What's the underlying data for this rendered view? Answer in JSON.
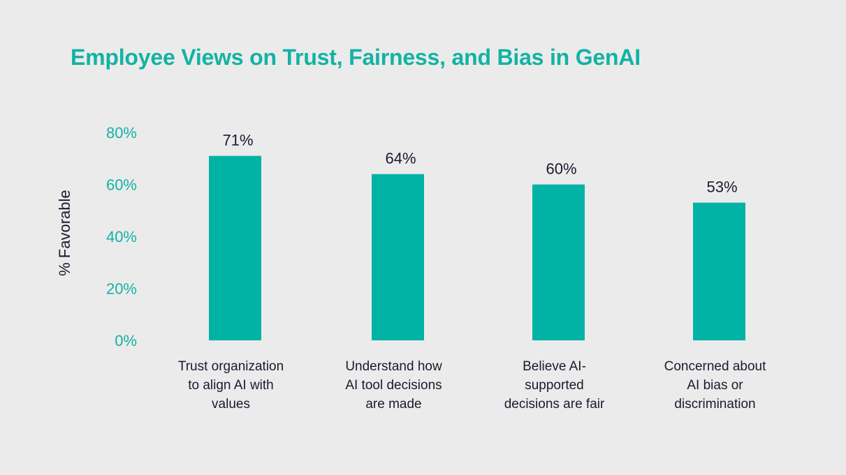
{
  "chart_data": {
    "type": "bar",
    "title": "Employee Views on Trust, Fairness, and Bias in GenAI",
    "xlabel": "",
    "ylabel": "% Favorable",
    "ylim": [
      0,
      80
    ],
    "yticks": [
      "0%",
      "20%",
      "40%",
      "60%",
      "80%"
    ],
    "ytick_values": [
      0,
      20,
      40,
      60,
      80
    ],
    "grid": false,
    "categories": [
      [
        "Trust organization",
        "to align AI with",
        "values"
      ],
      [
        "Understand how",
        "AI tool decisions",
        "are made"
      ],
      [
        "Believe AI-",
        "supported",
        "decisions are fair"
      ],
      [
        "Concerned about",
        "AI bias or",
        "discrimination"
      ]
    ],
    "values": [
      71,
      64,
      60,
      53
    ],
    "data_labels": [
      "71%",
      "64%",
      "60%",
      "53%"
    ],
    "colors": {
      "bar": "#00b3a4",
      "title": "#12b3a4",
      "ticks": "#12b3a4",
      "text": "#1a1a2e",
      "background": "#ebebeb"
    }
  }
}
